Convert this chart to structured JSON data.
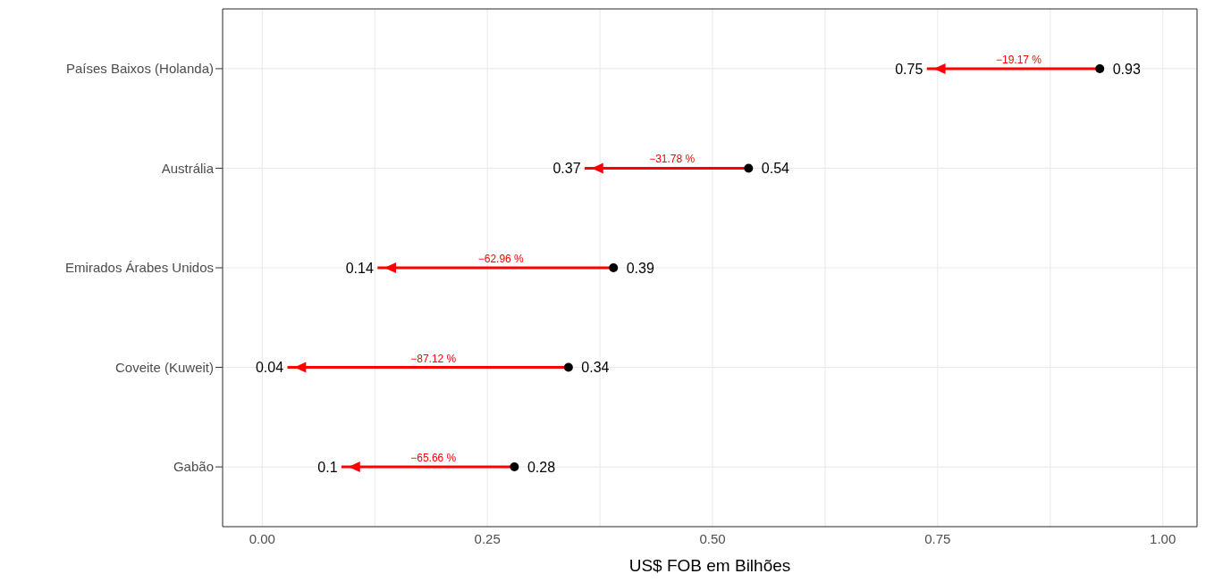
{
  "chart_data": {
    "type": "scatter",
    "orientation": "horizontal",
    "xlabel": "US$ FOB em Bilhões",
    "categories": [
      "Países Baixos (Holanda)",
      "Austrália",
      "Emirados Árabes Unidos",
      "Coveite (Kuweit)",
      "Gabão"
    ],
    "series": [
      {
        "marker": "circle",
        "color": "#000000",
        "values": [
          0.93,
          0.54,
          0.39,
          0.34,
          0.28
        ]
      },
      {
        "marker": "triangle",
        "color": "#ff0000",
        "values": [
          0.75,
          0.37,
          0.14,
          0.04,
          0.1
        ]
      }
    ],
    "xlim": [
      -0.044,
      1.038
    ],
    "xticks": [
      {
        "value": 0,
        "label": "0.00"
      },
      {
        "value": 0.125,
        "label": null
      },
      {
        "value": 0.25,
        "label": "0.25"
      },
      {
        "value": 0.375,
        "label": null
      },
      {
        "value": 0.5,
        "label": "0.50"
      },
      {
        "value": 0.625,
        "label": null
      },
      {
        "value": 0.75,
        "label": "0.75"
      },
      {
        "value": 0.875,
        "label": null
      },
      {
        "value": 1,
        "label": "1.00"
      }
    ],
    "annotations": [
      "−19.17 %",
      "−31.78 %",
      "−62.96 %",
      "−87.12 %",
      "−65.66 %"
    ],
    "data_labels": true,
    "grid": true,
    "legend": false
  }
}
